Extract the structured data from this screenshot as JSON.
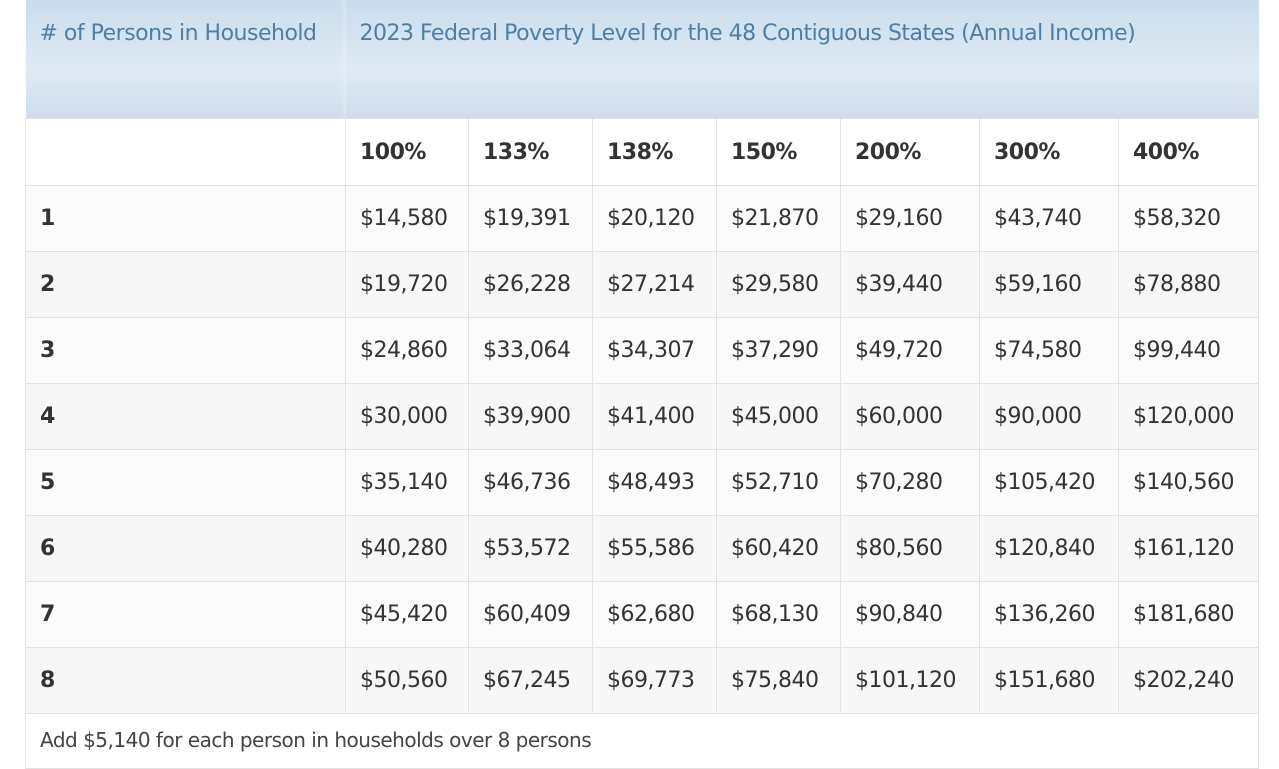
{
  "table": {
    "header": {
      "persons_label": "# of Persons in Household",
      "fpl_label": "2023 Federal Poverty Level for the 48 Contiguous States (Annual Income)"
    },
    "percent_columns": [
      "100%",
      "133%",
      "138%",
      "150%",
      "200%",
      "300%",
      "400%"
    ],
    "rows": [
      {
        "persons": "1",
        "values": [
          "$14,580",
          "$19,391",
          "$20,120",
          "$21,870",
          "$29,160",
          "$43,740",
          "$58,320"
        ]
      },
      {
        "persons": "2",
        "values": [
          "$19,720",
          "$26,228",
          "$27,214",
          "$29,580",
          "$39,440",
          "$59,160",
          "$78,880"
        ]
      },
      {
        "persons": "3",
        "values": [
          "$24,860",
          "$33,064",
          "$34,307",
          "$37,290",
          "$49,720",
          "$74,580",
          "$99,440"
        ]
      },
      {
        "persons": "4",
        "values": [
          "$30,000",
          "$39,900",
          "$41,400",
          "$45,000",
          "$60,000",
          "$90,000",
          "$120,000"
        ]
      },
      {
        "persons": "5",
        "values": [
          "$35,140",
          "$46,736",
          "$48,493",
          "$52,710",
          "$70,280",
          "$105,420",
          "$140,560"
        ]
      },
      {
        "persons": "6",
        "values": [
          "$40,280",
          "$53,572",
          "$55,586",
          "$60,420",
          "$80,560",
          "$120,840",
          "$161,120"
        ]
      },
      {
        "persons": "7",
        "values": [
          "$45,420",
          "$60,409",
          "$62,680",
          "$68,130",
          "$90,840",
          "$136,260",
          "$181,680"
        ]
      },
      {
        "persons": "8",
        "values": [
          "$50,560",
          "$67,245",
          "$69,773",
          "$75,840",
          "$101,120",
          "$151,680",
          "$202,240"
        ]
      }
    ],
    "footnote": "Add $5,140 for each person in households over 8 persons"
  }
}
